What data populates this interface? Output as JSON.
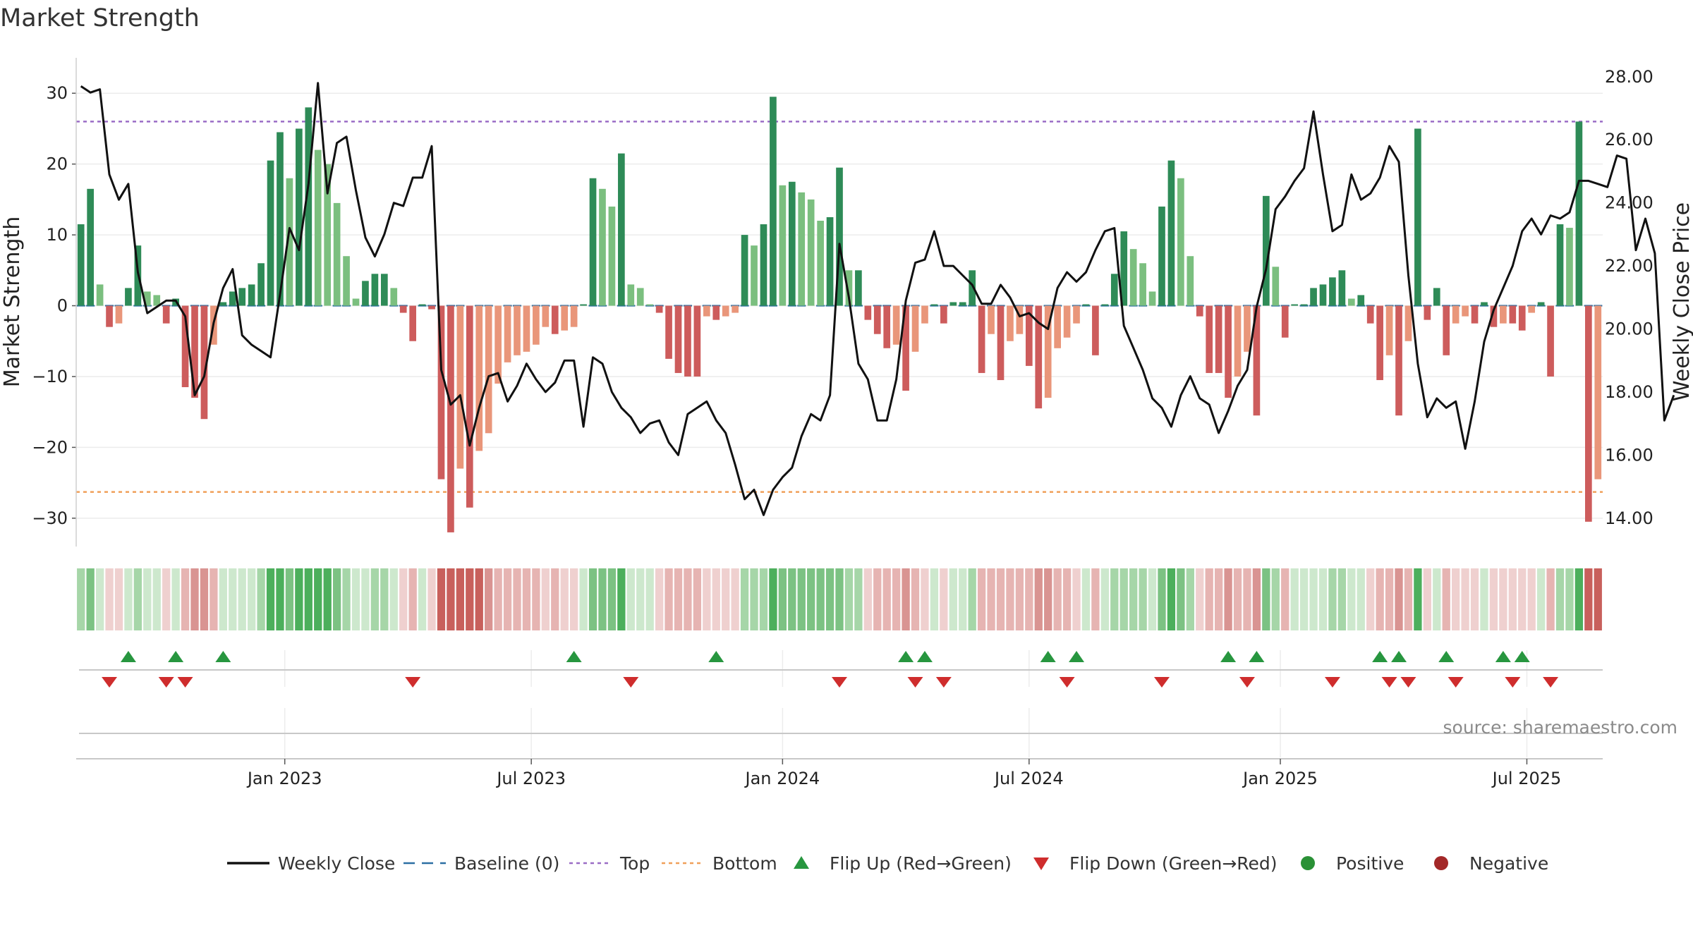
{
  "chart_data": {
    "type": "bar",
    "title": "Market Strength",
    "ylabel": "Market Strength",
    "y2label": "Weekly Close Price",
    "ylim": [
      -34,
      35
    ],
    "y2lim": [
      13.1,
      28.6
    ],
    "yticks": [
      30,
      20,
      10,
      0,
      -10,
      -20,
      -30
    ],
    "yticklabels": [
      "30",
      "20",
      "10",
      "0",
      "−10",
      "−20",
      "−30"
    ],
    "y2ticks": [
      28,
      26,
      24,
      22,
      20,
      18,
      16,
      14
    ],
    "y2ticklabels": [
      "28.00",
      "26.00",
      "24.00",
      "22.00",
      "20.00",
      "18.00",
      "16.00",
      "14.00"
    ],
    "top_level": 26,
    "bottom_level": -26.3,
    "x_months": [
      {
        "label": "Jan 2023",
        "week": 21.5
      },
      {
        "label": "Jul 2023",
        "week": 47.5
      },
      {
        "label": "Jan 2024",
        "week": 74
      },
      {
        "label": "Jul 2024",
        "week": 100
      },
      {
        "label": "Jan 2025",
        "week": 126.5
      },
      {
        "label": "Jul 2025",
        "week": 152.5
      }
    ],
    "strength": [
      11.5,
      16.5,
      3,
      -3,
      -2.5,
      2.5,
      8.5,
      2,
      1.5,
      -2.5,
      1,
      -11.5,
      -13,
      -16,
      -5.5,
      0.5,
      2,
      2.5,
      3,
      6,
      20.5,
      24.5,
      18,
      25,
      28,
      22,
      20,
      14.5,
      7,
      1,
      3.5,
      4.5,
      4.5,
      2.5,
      -1,
      -5,
      0.2,
      -0.5,
      -24.5,
      -32,
      -23,
      -28.5,
      -20.5,
      -18,
      -11,
      -8,
      -7,
      -6.5,
      -5.5,
      -3,
      -4,
      -3.5,
      -3,
      0.2,
      18,
      16.5,
      14,
      21.5,
      3,
      2.5,
      0.2,
      -1,
      -7.5,
      -9.5,
      -10,
      -10,
      -1.5,
      -2,
      -1.5,
      -1,
      10,
      8.5,
      11.5,
      29.5,
      17,
      17.5,
      16,
      15,
      12,
      12.5,
      19.5,
      5,
      5,
      -2,
      -4,
      -6,
      -5.5,
      -12,
      -6.5,
      -2.5,
      0.2,
      -2.5,
      0.5,
      0.5,
      5,
      -9.5,
      -4,
      -10.5,
      -5,
      -4,
      -8.5,
      -14.5,
      -13,
      -6,
      -4.5,
      -2.5,
      0.2,
      -7,
      0.2,
      4.5,
      10.5,
      8,
      6,
      2,
      14,
      20.5,
      18,
      7,
      -1.5,
      -9.5,
      -9.5,
      -13,
      -10,
      -6.5,
      -15.5,
      15.5,
      5.5,
      -4.5,
      0.2,
      0.2,
      2.5,
      3,
      4,
      5,
      1,
      1.5,
      -2.5,
      -10.5,
      -7,
      -15.5,
      -5,
      25,
      -2,
      2.5,
      -7,
      -2.5,
      -1.5,
      -2.5,
      0.5,
      -3,
      -2.5,
      -2.5,
      -3.5,
      -1,
      0.5,
      -10,
      11.5,
      11,
      26,
      -30.5,
      -24.5
    ],
    "price": [
      27.7,
      27.5,
      27.6,
      24.9,
      24.1,
      24.6,
      21.8,
      20.5,
      20.7,
      20.9,
      20.9,
      20.4,
      17.9,
      18.5,
      20.2,
      21.3,
      21.9,
      19.8,
      19.5,
      19.3,
      19.1,
      21.1,
      23.2,
      22.5,
      24.6,
      27.8,
      24.3,
      25.9,
      26.1,
      24.4,
      22.9,
      22.3,
      23.0,
      24.0,
      23.9,
      24.8,
      24.8,
      25.8,
      18.7,
      17.6,
      17.9,
      16.3,
      17.5,
      18.5,
      18.6,
      17.7,
      18.2,
      18.9,
      18.4,
      18.0,
      18.3,
      19.0,
      19.0,
      16.9,
      19.1,
      18.9,
      18.0,
      17.5,
      17.2,
      16.7,
      17.0,
      17.1,
      16.4,
      16.0,
      17.3,
      17.5,
      17.7,
      17.1,
      16.7,
      15.7,
      14.6,
      14.9,
      14.1,
      14.9,
      15.3,
      15.6,
      16.6,
      17.3,
      17.1,
      17.9,
      22.7,
      21.0,
      18.9,
      18.4,
      17.1,
      17.1,
      18.4,
      20.9,
      22.1,
      22.2,
      23.1,
      22.0,
      22.0,
      21.7,
      21.4,
      20.8,
      20.8,
      21.4,
      21.0,
      20.4,
      20.5,
      20.2,
      20.0,
      21.3,
      21.8,
      21.5,
      21.8,
      22.5,
      23.1,
      23.2,
      20.1,
      19.4,
      18.7,
      17.8,
      17.5,
      16.9,
      17.9,
      18.5,
      17.8,
      17.6,
      16.7,
      17.4,
      18.2,
      18.7,
      20.7,
      21.9,
      23.8,
      24.2,
      24.7,
      25.1,
      26.9,
      24.9,
      23.1,
      23.3,
      24.9,
      24.1,
      24.3,
      24.8,
      25.8,
      25.3,
      21.7,
      18.9,
      17.2,
      17.8,
      17.5,
      17.7,
      16.2,
      17.7,
      19.6,
      20.6,
      21.3,
      22.0,
      23.1,
      23.5,
      23.0,
      23.6,
      23.5,
      23.7,
      24.7,
      24.7,
      24.6,
      24.5,
      25.5,
      25.4,
      22.5,
      23.5,
      22.4,
      17.1,
      17.9
    ],
    "flip_up_weeks": [
      5,
      10,
      15,
      52,
      67,
      87,
      89,
      102,
      105,
      121,
      124,
      137,
      139,
      144,
      150,
      152
    ],
    "flip_down_weeks": [
      3,
      9,
      11,
      35,
      58,
      80,
      88,
      91,
      104,
      114,
      123,
      132,
      138,
      140,
      145,
      151,
      155
    ],
    "legend": [
      {
        "label": "Weekly Close",
        "kind": "line",
        "color": "#111111"
      },
      {
        "label": "Baseline (0)",
        "kind": "dash",
        "color": "#2c6fa3"
      },
      {
        "label": "Top",
        "kind": "dot",
        "color": "#9b6dc6"
      },
      {
        "label": "Bottom",
        "kind": "dot",
        "color": "#f0a05a"
      },
      {
        "label": "Flip Up (Red→Green)",
        "kind": "up",
        "color": "#27963f"
      },
      {
        "label": "Flip Down (Green→Red)",
        "kind": "down",
        "color": "#cf2d2d"
      },
      {
        "label": "Positive",
        "kind": "circle",
        "color": "#2a9136"
      },
      {
        "label": "Negative",
        "kind": "circle",
        "color": "#a32828"
      }
    ],
    "source": "source: sharemaestro.com"
  }
}
